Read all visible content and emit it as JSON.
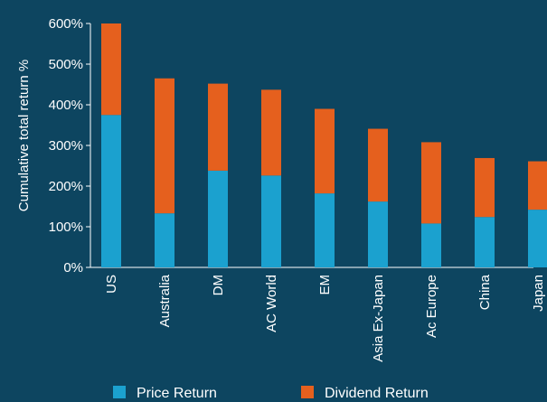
{
  "chart_data": {
    "type": "bar",
    "stacked": true,
    "categories": [
      "US",
      "Australia",
      "DM",
      "AC World",
      "EM",
      "Asia Ex-Japan",
      "Ac Europe",
      "China",
      "Japan"
    ],
    "series": [
      {
        "name": "Price Return",
        "color": "#1ba1cf",
        "values": [
          375,
          133,
          238,
          226,
          182,
          162,
          108,
          124,
          142
        ]
      },
      {
        "name": "Dividend Return",
        "color": "#e5601e",
        "values": [
          225,
          332,
          214,
          211,
          208,
          179,
          200,
          145,
          119
        ]
      }
    ],
    "ylabel": "Cumulative total return %",
    "ylim": [
      0,
      600
    ],
    "yticks": [
      "0%",
      "100%",
      "200%",
      "300%",
      "400%",
      "500%",
      "600%"
    ],
    "grid": false,
    "legend_position": "bottom"
  },
  "colors": {
    "background": "#0d4560",
    "axis": "#ffffff"
  }
}
